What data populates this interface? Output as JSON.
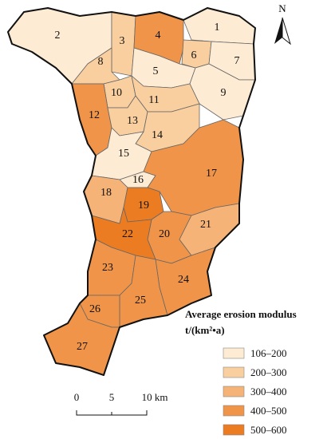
{
  "map": {
    "north": "N",
    "regions": [
      {
        "label": "1",
        "color": "#fdebd3"
      },
      {
        "label": "2",
        "color": "#fdebd3"
      },
      {
        "label": "3",
        "color": "#f9cfa0"
      },
      {
        "label": "4",
        "color": "#ef9448"
      },
      {
        "label": "5",
        "color": "#fdebd3"
      },
      {
        "label": "6",
        "color": "#f9cfa0"
      },
      {
        "label": "7",
        "color": "#fdebd3"
      },
      {
        "label": "8",
        "color": "#f9cfa0"
      },
      {
        "label": "9",
        "color": "#fdebd3"
      },
      {
        "label": "10",
        "color": "#f9cfa0"
      },
      {
        "label": "11",
        "color": "#f9cfa0"
      },
      {
        "label": "12",
        "color": "#ef9448"
      },
      {
        "label": "13",
        "color": "#f9cfa0"
      },
      {
        "label": "14",
        "color": "#f9cfa0"
      },
      {
        "label": "15",
        "color": "#fdebd3"
      },
      {
        "label": "16",
        "color": "#fdebd3"
      },
      {
        "label": "17",
        "color": "#ef9448"
      },
      {
        "label": "18",
        "color": "#f5b377"
      },
      {
        "label": "19",
        "color": "#ec7c22"
      },
      {
        "label": "20",
        "color": "#ef9448"
      },
      {
        "label": "21",
        "color": "#f5b377"
      },
      {
        "label": "22",
        "color": "#ec7c22"
      },
      {
        "label": "23",
        "color": "#ef9448"
      },
      {
        "label": "24",
        "color": "#ef9448"
      },
      {
        "label": "25",
        "color": "#ef9448"
      },
      {
        "label": "26",
        "color": "#ef9448"
      },
      {
        "label": "27",
        "color": "#ef9448"
      }
    ],
    "legend": {
      "title": [
        "Average erosion modulus",
        "t/(km²•a)"
      ],
      "items": [
        {
          "label": "106–200",
          "color": "#fdebd3"
        },
        {
          "label": "200–300",
          "color": "#f9cfa0"
        },
        {
          "label": "300–400",
          "color": "#f5b377"
        },
        {
          "label": "400–500",
          "color": "#ef9448"
        },
        {
          "label": "500–600",
          "color": "#ec7c22"
        }
      ]
    },
    "scale_bar": [
      "0",
      "5",
      "10 km"
    ]
  }
}
